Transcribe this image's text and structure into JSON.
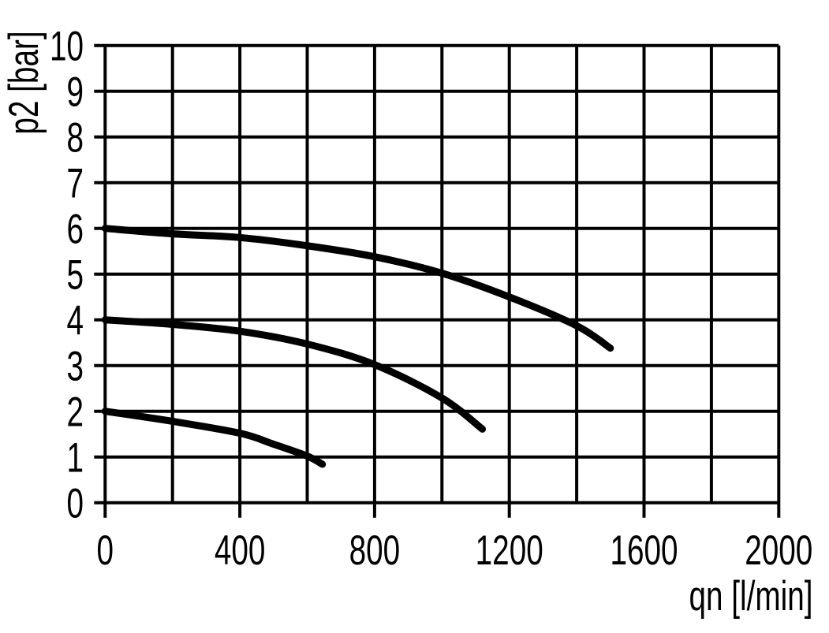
{
  "chart_data": {
    "type": "line",
    "title": "",
    "xlabel": "qn [l/min]",
    "ylabel": "p2 [bar]",
    "xlim": [
      0,
      2000
    ],
    "ylim": [
      0,
      10
    ],
    "x_gridline_step": 200,
    "y_gridline_step": 1,
    "x_tick_values": [
      0,
      400,
      800,
      1200,
      1600,
      2000
    ],
    "x_tick_labels": [
      "0",
      "400",
      "800",
      "1200",
      "1600",
      "2000"
    ],
    "y_tick_values": [
      0,
      1,
      2,
      3,
      4,
      5,
      6,
      7,
      8,
      9,
      10
    ],
    "y_tick_labels": [
      "0",
      "1",
      "2",
      "3",
      "4",
      "5",
      "6",
      "7",
      "8",
      "9",
      "10"
    ],
    "grid": true,
    "legend_position": "none",
    "series": [
      {
        "name": "curve-from-6-bar",
        "points": [
          [
            0,
            6.0
          ],
          [
            200,
            5.88
          ],
          [
            400,
            5.8
          ],
          [
            600,
            5.62
          ],
          [
            800,
            5.38
          ],
          [
            1000,
            5.02
          ],
          [
            1200,
            4.5
          ],
          [
            1400,
            3.87
          ],
          [
            1500,
            3.38
          ]
        ]
      },
      {
        "name": "curve-from-4-bar",
        "points": [
          [
            0,
            4.0
          ],
          [
            200,
            3.9
          ],
          [
            400,
            3.75
          ],
          [
            600,
            3.47
          ],
          [
            800,
            3.02
          ],
          [
            1000,
            2.29
          ],
          [
            1120,
            1.61
          ]
        ]
      },
      {
        "name": "curve-from-2-bar",
        "points": [
          [
            0,
            2.0
          ],
          [
            200,
            1.78
          ],
          [
            400,
            1.52
          ],
          [
            500,
            1.28
          ],
          [
            600,
            1.02
          ],
          [
            645,
            0.84
          ]
        ]
      }
    ],
    "colors": {
      "foreground": "#000000",
      "background": "#ffffff"
    }
  }
}
